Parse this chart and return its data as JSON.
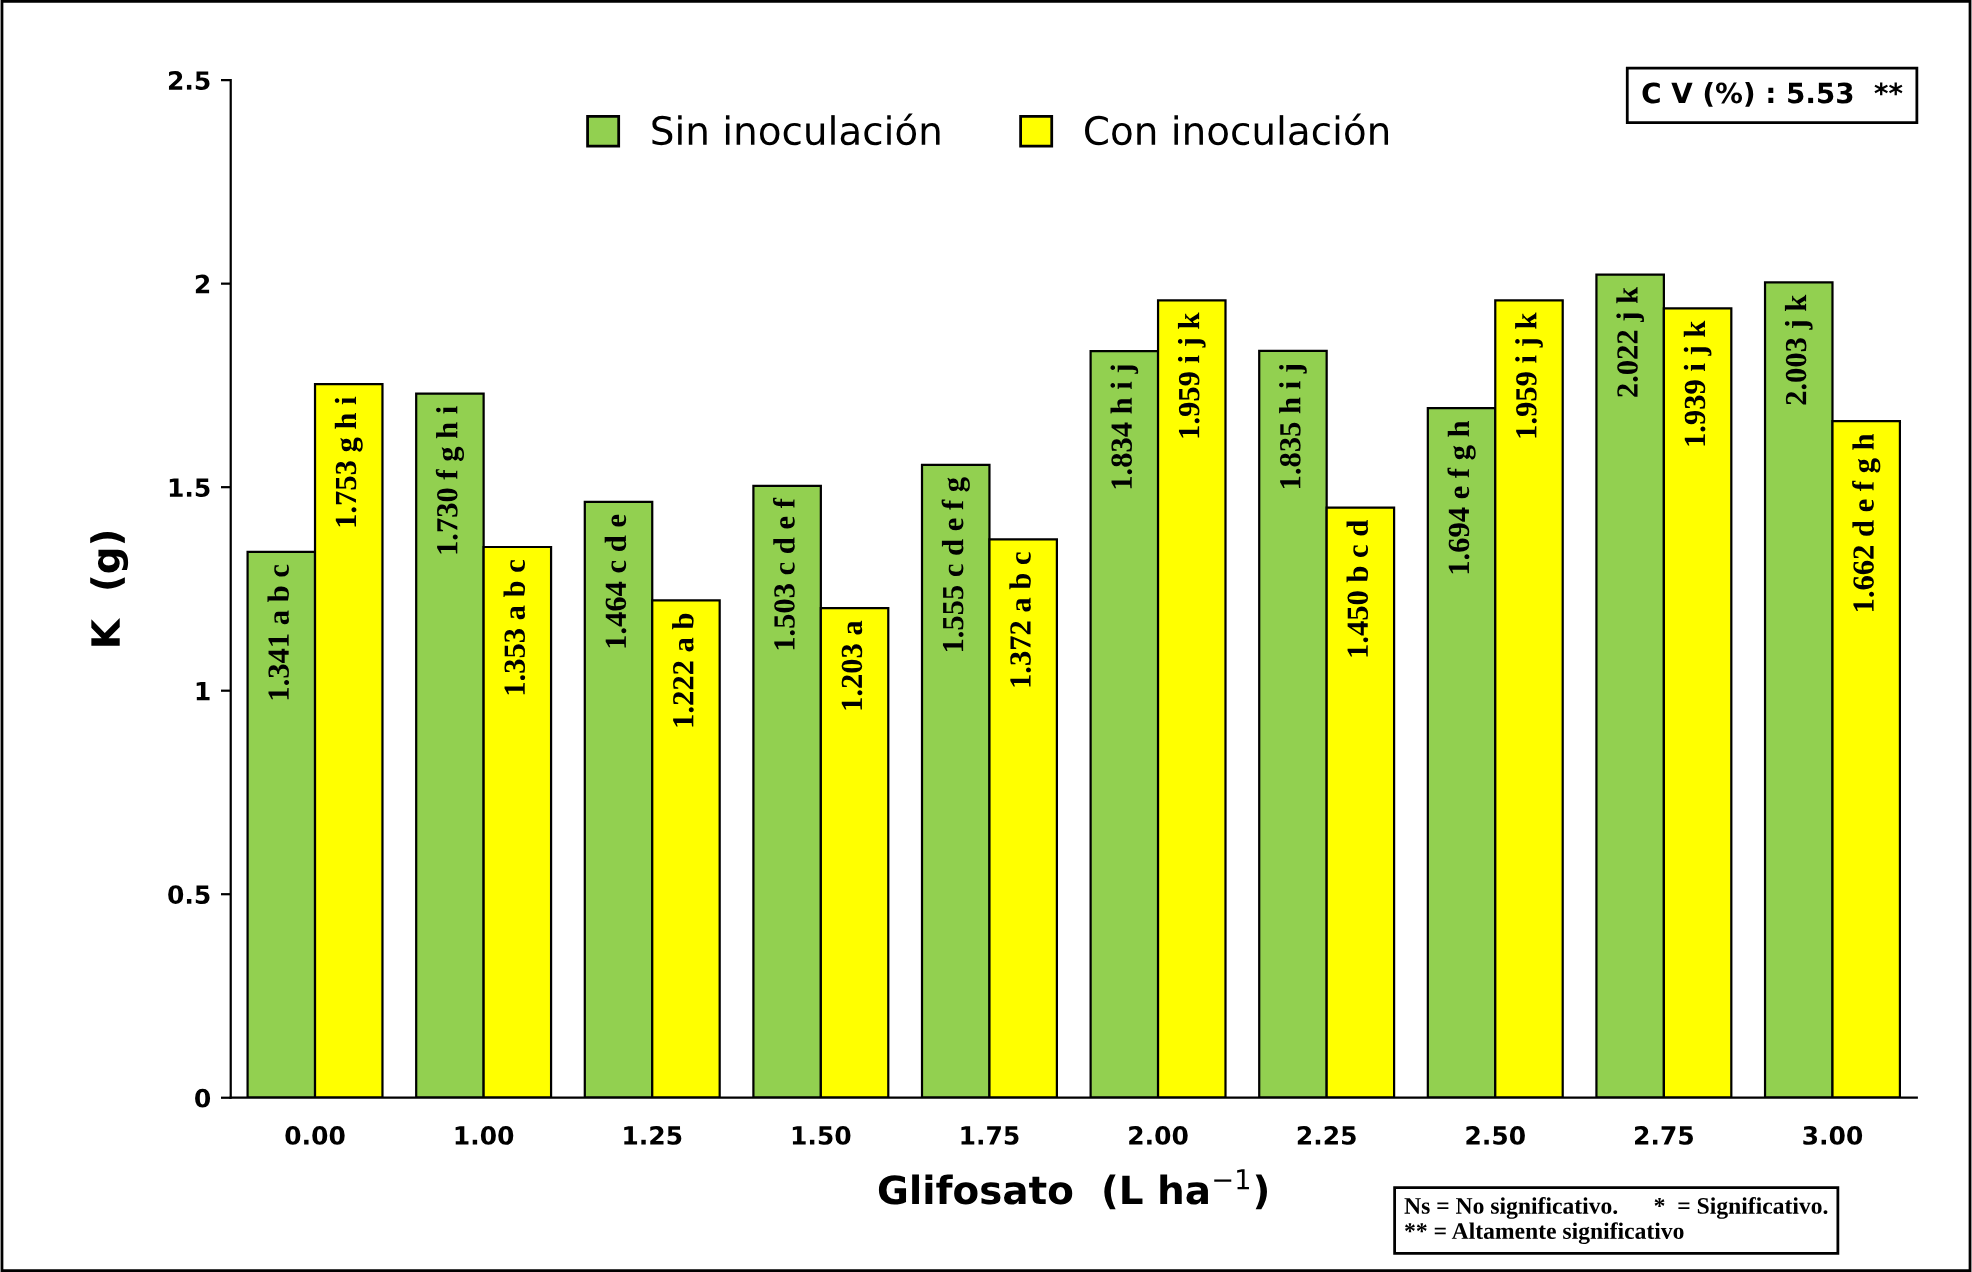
{
  "chart_data": {
    "type": "bar",
    "xlabel": "Glifosato  (L ha$^{−1}$)",
    "ylabel": "K  (g)",
    "categories": [
      "0.00",
      "1.00",
      "1.25",
      "1.50",
      "1.75",
      "2.00",
      "2.25",
      "2.50",
      "2.75",
      "3.00"
    ],
    "series": [
      {
        "name": "Sin inoculación",
        "color": "#92d050",
        "values": [
          1.341,
          1.73,
          1.464,
          1.503,
          1.555,
          1.834,
          1.835,
          1.694,
          2.022,
          2.003
        ],
        "value_labels": [
          "1.341 a b c",
          "1.730 f g h i",
          "1.464 c d e",
          "1.503 c d e f",
          "1.555 c d e f g",
          "1.834 h i j",
          "1.835 h i j",
          "1.694 e f g h",
          "2.022 j k",
          "2.003 j k"
        ]
      },
      {
        "name": "Con inoculación",
        "color": "#ffff00",
        "values": [
          1.753,
          1.353,
          1.222,
          1.203,
          1.372,
          1.959,
          1.45,
          1.959,
          1.939,
          1.662
        ],
        "value_labels": [
          "1.753 g h i",
          "1.353 a b c",
          "1.222 a b",
          "1.203 a",
          "1.372 a b c",
          "1.959 i j k",
          "1.450 b c d",
          "1.959 i j k",
          "1.939 i j k",
          "1.662 d e f g h"
        ]
      }
    ],
    "ylim": [
      0,
      2.5
    ],
    "yticks": [
      {
        "value": 0,
        "label": "0"
      },
      0.5,
      {
        "value": 1,
        "label": "1"
      },
      1.5,
      {
        "value": 2,
        "label": "2"
      },
      2.5
    ],
    "grid": false,
    "legend": "top",
    "annotations": [
      "C V (%) : 5.53  **",
      "Ns = No significativo.      *  = Significativo.\n** = Altamente significativo"
    ]
  }
}
